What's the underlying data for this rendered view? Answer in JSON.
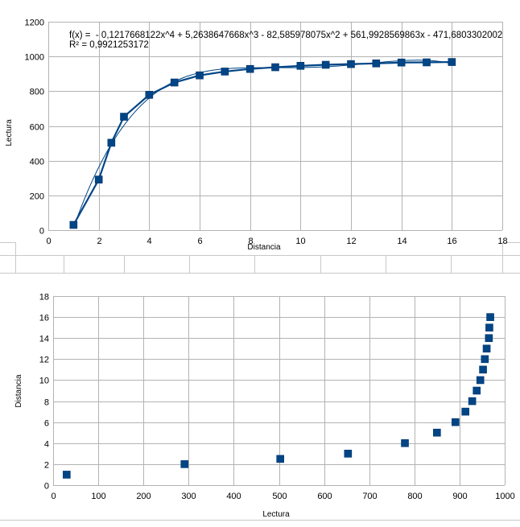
{
  "chart_data": [
    {
      "type": "line",
      "xlabel": "Distancia",
      "ylabel": "Lectura",
      "xlim": [
        0,
        18
      ],
      "ylim": [
        0,
        1200
      ],
      "xticks": [
        0,
        2,
        4,
        6,
        8,
        10,
        12,
        14,
        16,
        18
      ],
      "yticks": [
        0,
        200,
        400,
        600,
        800,
        1000,
        1200
      ],
      "grid": true,
      "legend": "none",
      "series": [
        {
          "x": [
            1,
            2,
            2.5,
            3,
            4,
            5,
            6,
            7,
            8,
            9,
            10,
            11,
            12,
            13,
            14,
            15,
            16
          ],
          "values": [
            30,
            291,
            503,
            653,
            779,
            850,
            891,
            913,
            928,
            938,
            946,
            952,
            956,
            960,
            965,
            966,
            968
          ]
        }
      ],
      "trendline": {
        "type": "polynomial",
        "coefficients": [
          -0.1217668122,
          5.2638647668,
          -82.585978075,
          561.9928569863,
          -471.6803302002
        ],
        "equation": "f(x) =  - 0,1217668122x^4 + 5,2638647668x^3 - 82,585978075x^2 + 561,9928569863x - 471,6803302002",
        "r2": "R² = 0,9921253172"
      },
      "colors": {
        "series": "#004586",
        "trend": "#004586",
        "grid": "#b3b3b3"
      }
    },
    {
      "type": "scatter",
      "xlabel": "Lectura",
      "ylabel": "Distancia",
      "xlim": [
        0,
        1000
      ],
      "ylim": [
        0,
        18
      ],
      "xticks": [
        0,
        100,
        200,
        300,
        400,
        500,
        600,
        700,
        800,
        900,
        1000
      ],
      "yticks": [
        0,
        2,
        4,
        6,
        8,
        10,
        12,
        14,
        16,
        18
      ],
      "grid": true,
      "legend": "none",
      "series": [
        {
          "x": [
            30,
            291,
            503,
            653,
            779,
            850,
            891,
            913,
            928,
            938,
            946,
            952,
            956,
            960,
            965,
            966,
            968
          ],
          "values": [
            1,
            2,
            2.5,
            3,
            4,
            5,
            6,
            7,
            8,
            9,
            10,
            11,
            12,
            13,
            14,
            15,
            16
          ]
        }
      ],
      "colors": {
        "series": "#004586",
        "grid": "#b3b3b3"
      }
    }
  ]
}
